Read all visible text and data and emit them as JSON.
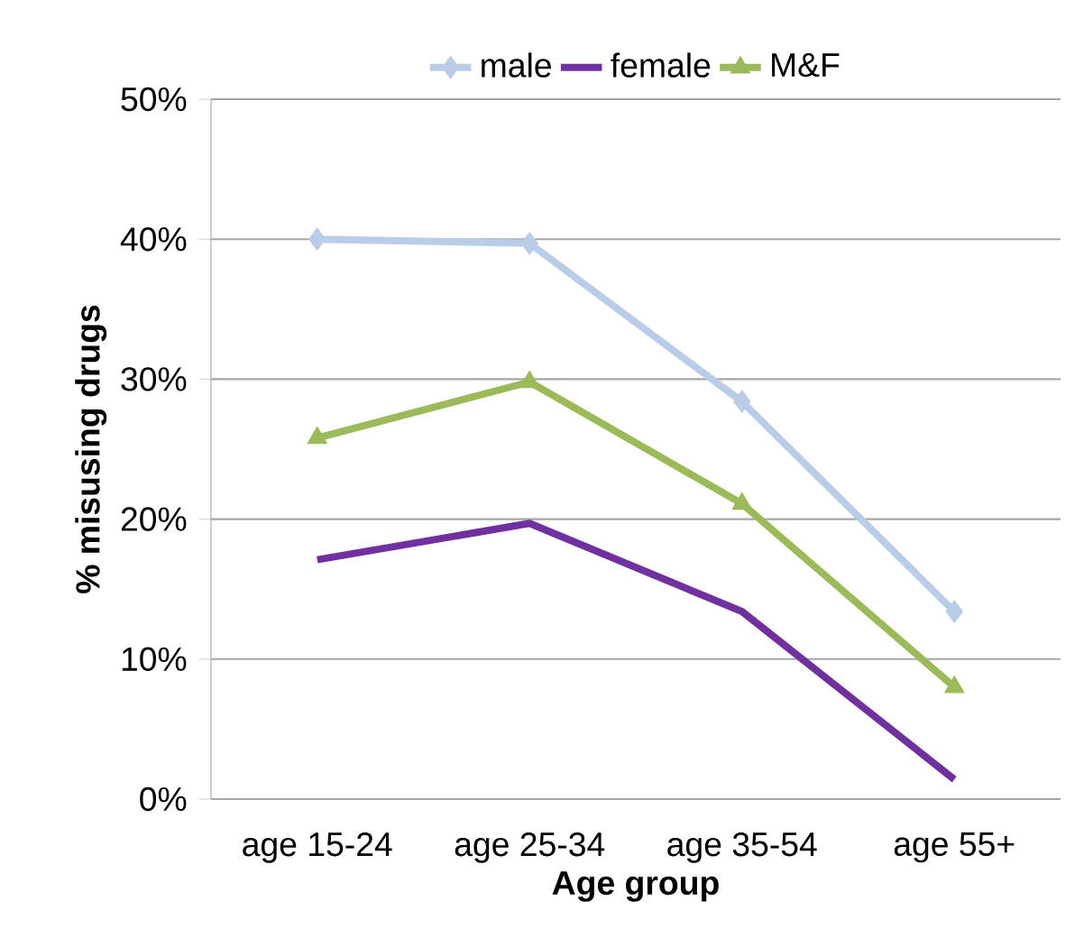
{
  "chart_data": {
    "type": "line",
    "xlabel": "Age group",
    "ylabel": "% misusing drugs",
    "categories": [
      "age 15-24",
      "age 25-34",
      "age 35-54",
      "age 55+"
    ],
    "series": [
      {
        "name": "male",
        "color": "#b9cde9",
        "marker": "diamond",
        "values": [
          40.0,
          39.7,
          28.4,
          13.4
        ]
      },
      {
        "name": "female",
        "color": "#7030a0",
        "marker": "none",
        "values": [
          17.1,
          19.7,
          13.4,
          1.4
        ]
      },
      {
        "name": "M&F",
        "color": "#9bbb59",
        "marker": "triangle",
        "values": [
          25.8,
          29.8,
          21.1,
          8.0
        ]
      }
    ],
    "ylim": [
      0,
      50
    ],
    "yticks": [
      {
        "value": 0,
        "label": "0%"
      },
      {
        "value": 10,
        "label": "10%"
      },
      {
        "value": 20,
        "label": "20%"
      },
      {
        "value": 30,
        "label": "30%"
      },
      {
        "value": 40,
        "label": "40%"
      },
      {
        "value": 50,
        "label": "50%"
      }
    ],
    "grid": "y",
    "legend": "top",
    "line_style": "solid"
  }
}
